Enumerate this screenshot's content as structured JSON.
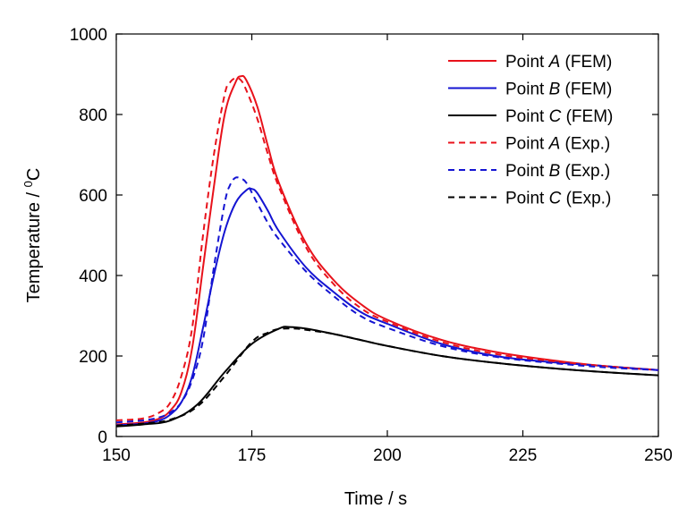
{
  "chart_data": {
    "type": "line",
    "xlabel": "Time / s",
    "ylabel_prefix": "Temperature / ",
    "ylabel_superscript": "0",
    "ylabel_suffix": "C",
    "xlim": [
      150,
      250
    ],
    "ylim": [
      0,
      1000
    ],
    "xticks": [
      "150",
      "175",
      "200",
      "225",
      "250"
    ],
    "yticks": [
      "0",
      "200",
      "400",
      "600",
      "800",
      "1000"
    ],
    "grid": false,
    "legend_position": "top-right",
    "series": [
      {
        "name": "Point A (FEM)",
        "label_prefix": "Point ",
        "label_italic": "A",
        "label_suffix": " (FEM)",
        "color": "#e8121b",
        "dash": "solid",
        "x": [
          150,
          155,
          158,
          160,
          162,
          164,
          166,
          168,
          170,
          172,
          173,
          174,
          176,
          178,
          180,
          185,
          190,
          195,
          200,
          210,
          220,
          230,
          240,
          250
        ],
        "y": [
          30,
          35,
          45,
          65,
          110,
          220,
          420,
          620,
          800,
          880,
          895,
          885,
          820,
          720,
          630,
          480,
          390,
          330,
          290,
          240,
          210,
          190,
          175,
          165
        ]
      },
      {
        "name": "Point B (FEM)",
        "label_prefix": "Point ",
        "label_italic": "B",
        "label_suffix": " (FEM)",
        "color": "#1414d2",
        "dash": "solid",
        "x": [
          150,
          155,
          158,
          160,
          162,
          164,
          166,
          168,
          170,
          172,
          174,
          175,
          176,
          178,
          180,
          185,
          190,
          195,
          200,
          210,
          220,
          230,
          240,
          250
        ],
        "y": [
          28,
          32,
          40,
          55,
          85,
          150,
          270,
          400,
          510,
          580,
          612,
          615,
          605,
          560,
          510,
          420,
          360,
          310,
          280,
          230,
          200,
          185,
          175,
          165
        ]
      },
      {
        "name": "Point C (FEM)",
        "label_prefix": "Point ",
        "label_italic": "C",
        "label_suffix": " (FEM)",
        "color": "#000000",
        "dash": "solid",
        "x": [
          150,
          155,
          160,
          165,
          170,
          175,
          180,
          182,
          185,
          190,
          195,
          200,
          210,
          220,
          230,
          240,
          250
        ],
        "y": [
          25,
          30,
          40,
          80,
          160,
          230,
          268,
          272,
          268,
          255,
          240,
          225,
          200,
          183,
          170,
          160,
          152
        ]
      },
      {
        "name": "Point A (Exp.)",
        "label_prefix": "Point ",
        "label_italic": "A",
        "label_suffix": " (Exp.)",
        "color": "#e8121b",
        "dash": "dashed",
        "x": [
          150,
          155,
          158,
          160,
          162,
          164,
          166,
          168,
          170,
          171,
          172,
          173,
          174,
          176,
          178,
          180,
          185,
          190,
          195,
          200,
          210,
          220,
          230,
          240,
          250
        ],
        "y": [
          40,
          45,
          60,
          85,
          150,
          270,
          500,
          700,
          850,
          880,
          890,
          885,
          860,
          790,
          700,
          620,
          470,
          380,
          320,
          285,
          235,
          205,
          188,
          175,
          165
        ]
      },
      {
        "name": "Point B (Exp.)",
        "label_prefix": "Point ",
        "label_italic": "B",
        "label_suffix": " (Exp.)",
        "color": "#1414d2",
        "dash": "dashed",
        "x": [
          150,
          155,
          158,
          160,
          162,
          164,
          166,
          168,
          170,
          171,
          172,
          173,
          174,
          176,
          178,
          180,
          185,
          190,
          195,
          200,
          210,
          220,
          230,
          240,
          250
        ],
        "y": [
          35,
          40,
          48,
          60,
          85,
          140,
          240,
          420,
          580,
          625,
          643,
          640,
          630,
          580,
          530,
          490,
          410,
          350,
          300,
          270,
          225,
          198,
          183,
          172,
          165
        ]
      },
      {
        "name": "Point C (Exp.)",
        "label_prefix": "Point ",
        "label_italic": "C",
        "label_suffix": " (Exp.)",
        "color": "#000000",
        "dash": "dashed",
        "x": [
          150,
          155,
          160,
          165,
          170,
          175,
          178,
          180,
          183,
          185,
          190,
          195,
          200,
          210,
          220,
          230,
          240,
          250
        ],
        "y": [
          27,
          32,
          42,
          75,
          150,
          235,
          258,
          267,
          268,
          265,
          255,
          240,
          225,
          200,
          183,
          170,
          160,
          152
        ]
      }
    ]
  }
}
